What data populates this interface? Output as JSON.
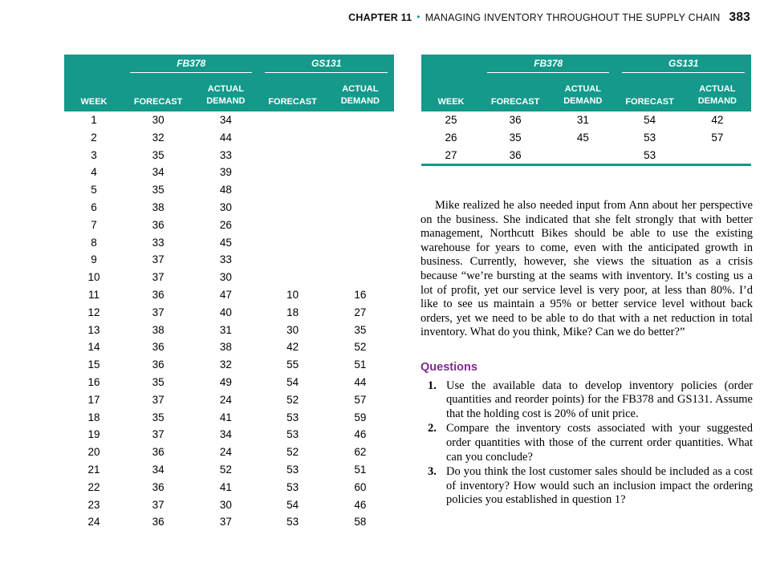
{
  "header": {
    "chapter_label": "CHAPTER 11",
    "bullet": "•",
    "chapter_title": "MANAGING INVENTORY THROUGHOUT THE SUPPLY CHAIN",
    "page_number": "383"
  },
  "tables": {
    "products": [
      "FB378",
      "GS131"
    ],
    "columns": {
      "week": "WEEK",
      "forecast": "FORECAST",
      "actual": "ACTUAL",
      "demand": "DEMAND"
    },
    "left": {
      "rows": [
        [
          "1",
          "30",
          "34",
          "",
          ""
        ],
        [
          "2",
          "32",
          "44",
          "",
          ""
        ],
        [
          "3",
          "35",
          "33",
          "",
          ""
        ],
        [
          "4",
          "34",
          "39",
          "",
          ""
        ],
        [
          "5",
          "35",
          "48",
          "",
          ""
        ],
        [
          "6",
          "38",
          "30",
          "",
          ""
        ],
        [
          "7",
          "36",
          "26",
          "",
          ""
        ],
        [
          "8",
          "33",
          "45",
          "",
          ""
        ],
        [
          "9",
          "37",
          "33",
          "",
          ""
        ],
        [
          "10",
          "37",
          "30",
          "",
          ""
        ],
        [
          "11",
          "36",
          "47",
          "10",
          "16"
        ],
        [
          "12",
          "37",
          "40",
          "18",
          "27"
        ],
        [
          "13",
          "38",
          "31",
          "30",
          "35"
        ],
        [
          "14",
          "36",
          "38",
          "42",
          "52"
        ],
        [
          "15",
          "36",
          "32",
          "55",
          "51"
        ],
        [
          "16",
          "35",
          "49",
          "54",
          "44"
        ],
        [
          "17",
          "37",
          "24",
          "52",
          "57"
        ],
        [
          "18",
          "35",
          "41",
          "53",
          "59"
        ],
        [
          "19",
          "37",
          "34",
          "53",
          "46"
        ],
        [
          "20",
          "36",
          "24",
          "52",
          "62"
        ],
        [
          "21",
          "34",
          "52",
          "53",
          "51"
        ],
        [
          "22",
          "36",
          "41",
          "53",
          "60"
        ],
        [
          "23",
          "37",
          "30",
          "54",
          "46"
        ],
        [
          "24",
          "36",
          "37",
          "53",
          "58"
        ]
      ]
    },
    "right": {
      "rows": [
        [
          "25",
          "36",
          "31",
          "54",
          "42"
        ],
        [
          "26",
          "35",
          "45",
          "53",
          "57"
        ],
        [
          "27",
          "36",
          "",
          "53",
          ""
        ]
      ]
    }
  },
  "body_text": "Mike realized he also needed input from Ann about her perspective on the business. She indicated that she felt strongly that with better management, Northcutt Bikes should be able to use the existing warehouse for years to come, even with the anticipated growth in business. Currently, however, she views the situation as a crisis because “we’re bursting at the seams with inventory. It’s costing us a lot of profit, yet our service level is very poor, at less than 80%. I’d like to see us maintain a 95% or better service level without back orders, yet we need to be able to do that with a net reduction in total inventory. What do you think, Mike? Can we do better?”",
  "questions": {
    "heading": "Questions",
    "items": [
      {
        "num": "1.",
        "text": "Use the available data to develop inventory policies (order quantities and reorder points) for the FB378 and GS131. Assume that the holding cost is 20% of unit price."
      },
      {
        "num": "2.",
        "text": "Compare the inventory costs associated with your suggested order quantities with those of the current order quantities. What can you conclude?"
      },
      {
        "num": "3.",
        "text": "Do you think the lost customer sales should be included as a cost of inventory? How would such an inclusion impact the ordering policies you established in question 1?"
      }
    ]
  },
  "colors": {
    "teal": "#14998b",
    "purple": "#7d2b8b"
  }
}
